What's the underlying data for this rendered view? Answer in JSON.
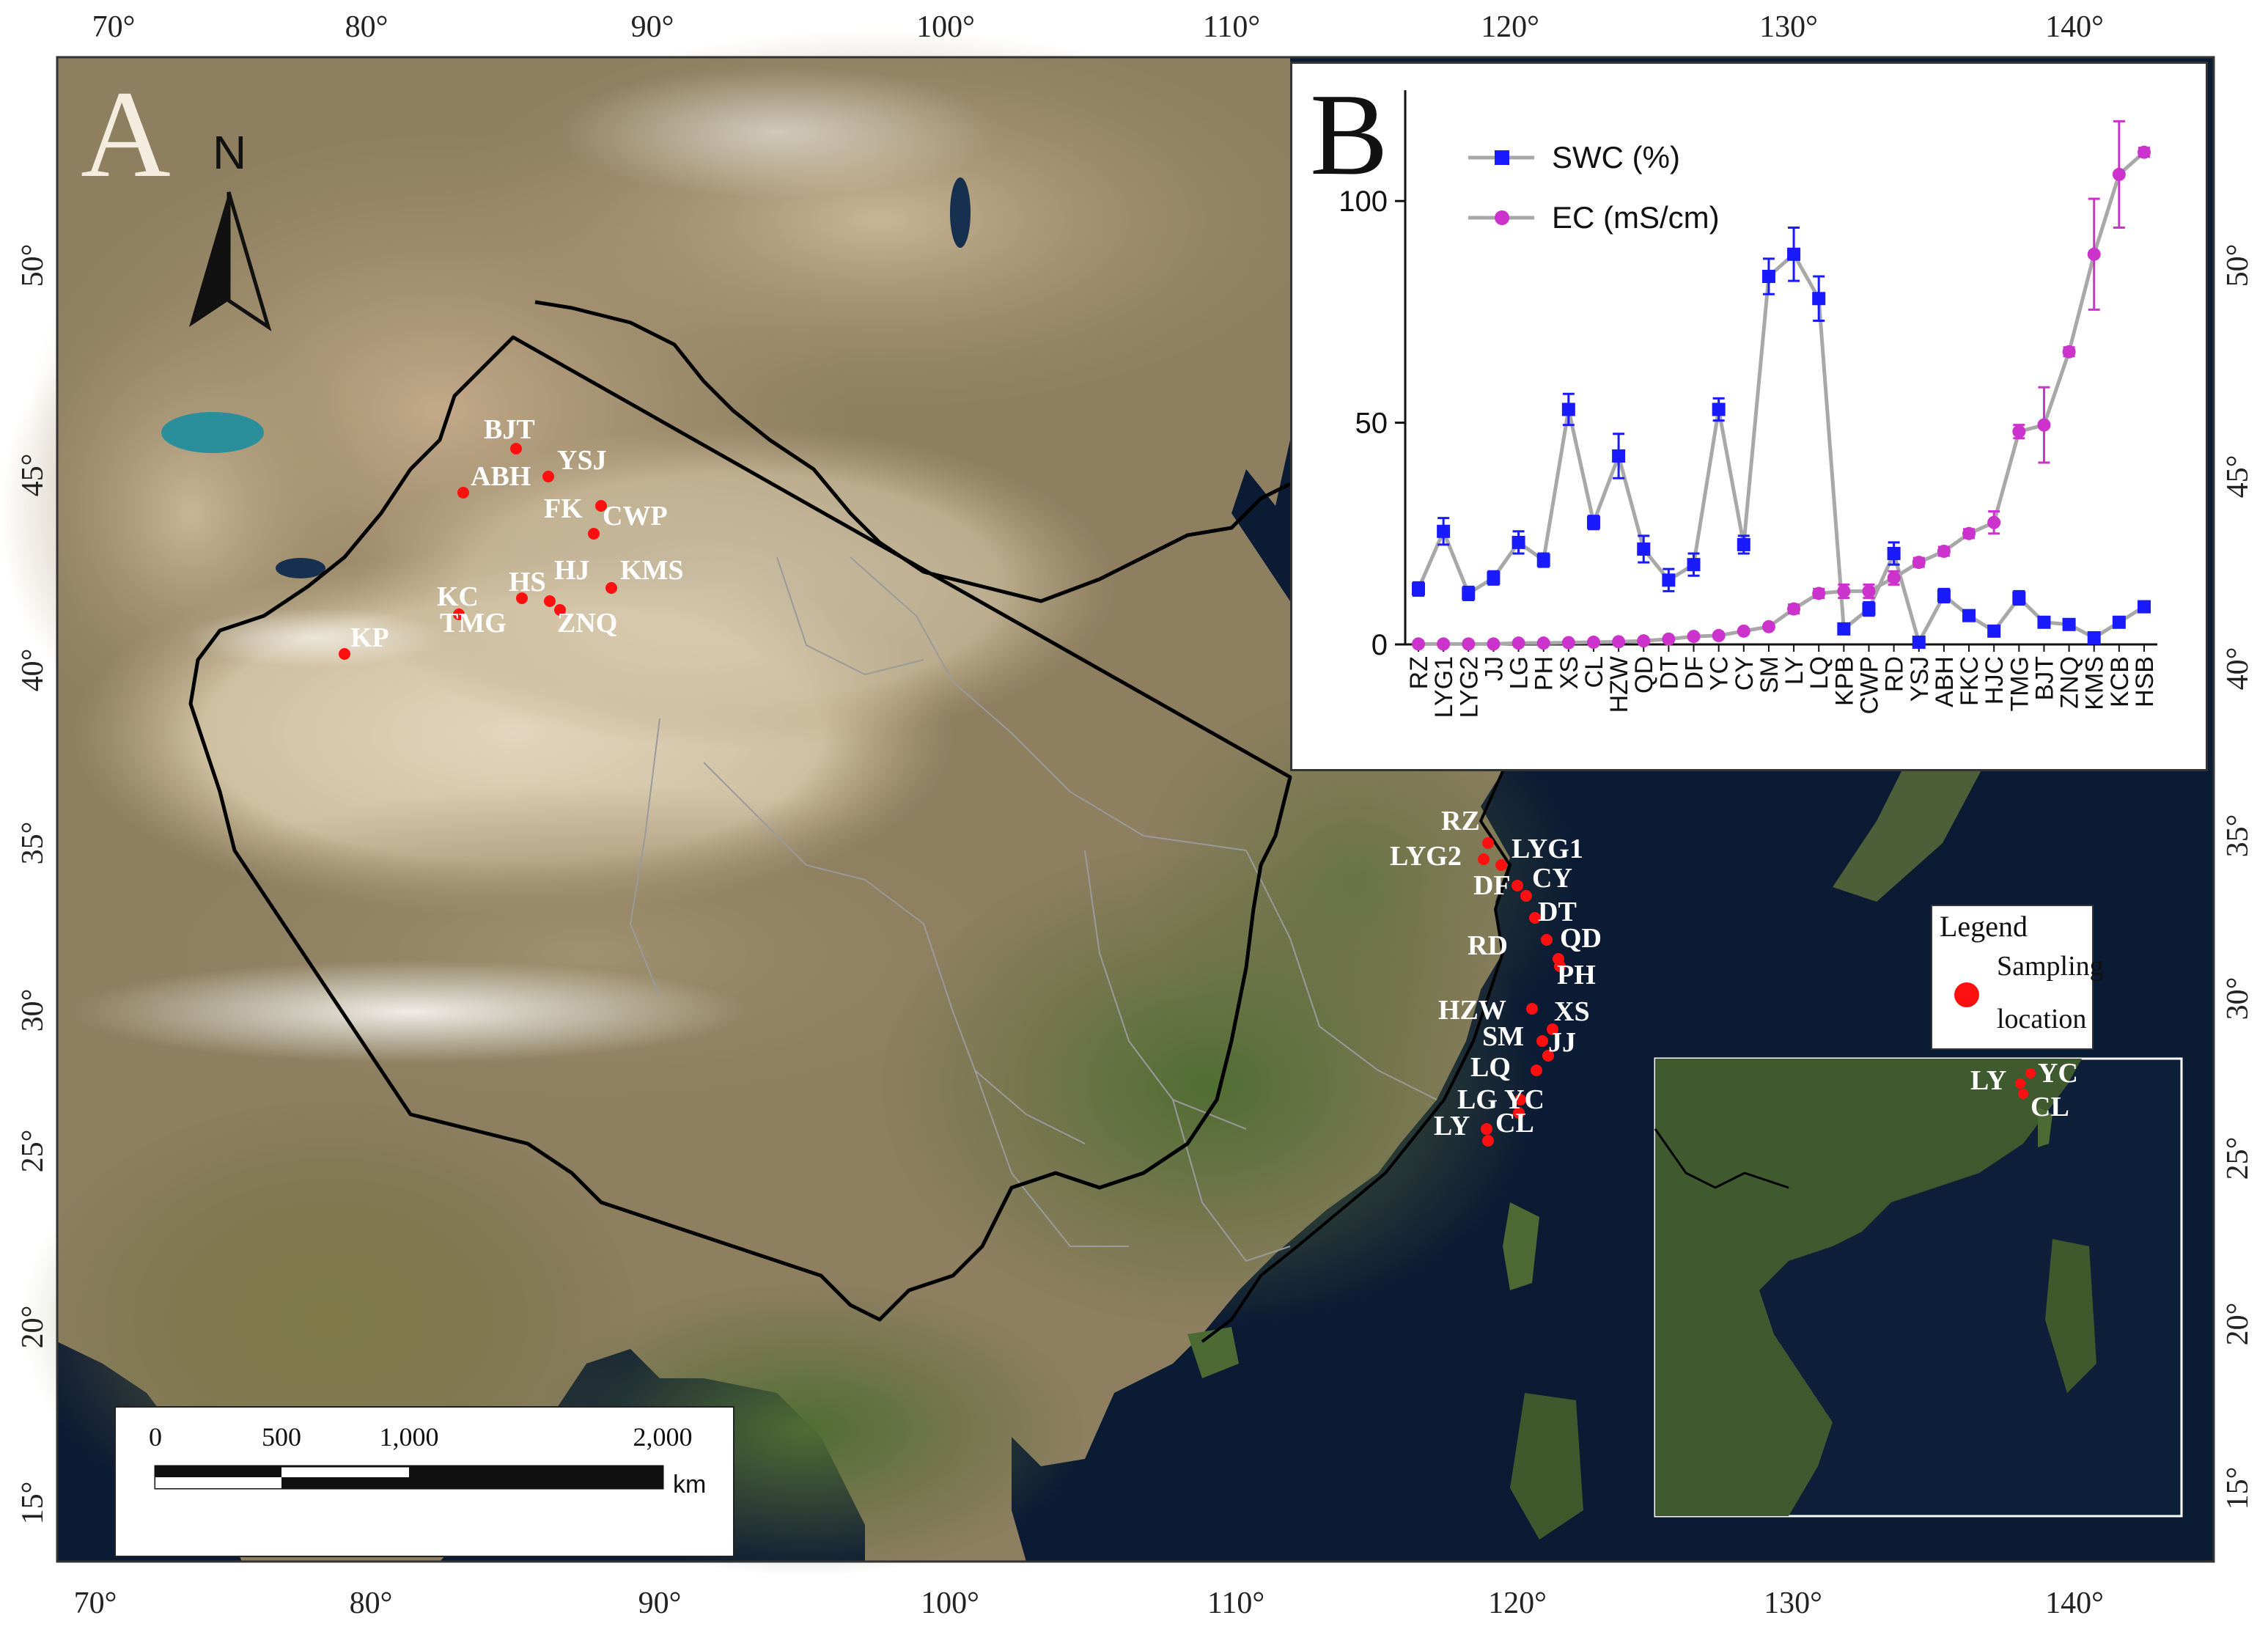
{
  "panel_a": {
    "letter": "A",
    "north_label": "N",
    "lon_ticks": [
      "70°",
      "80°",
      "90°",
      "100°",
      "110°",
      "120°",
      "130°",
      "140°"
    ],
    "lat_ticks": [
      "15°",
      "20°",
      "25°",
      "30°",
      "35°",
      "40°",
      "45°",
      "50°"
    ],
    "sites_west": [
      "BJT",
      "YSJ",
      "ABH",
      "FK",
      "CWP",
      "HS",
      "HJ",
      "KMS",
      "KC",
      "TMG",
      "ZNQ",
      "KP"
    ],
    "sites_east": [
      "RZ",
      "LYG2",
      "LYG1",
      "DF",
      "CY",
      "DT",
      "RD",
      "QD",
      "PH",
      "HZW",
      "XS",
      "SM",
      "JJ",
      "LQ",
      "LG",
      "YC",
      "LY",
      "CL"
    ],
    "inset_sites": [
      "LY",
      "YC",
      "CL"
    ],
    "legend": {
      "title": "Legend",
      "item_line1": "Sampling",
      "item_line2": "location",
      "marker_color": "#ff1010"
    },
    "scale_bar": {
      "labels": [
        "0",
        "500",
        "1,000",
        "2,000"
      ],
      "unit": "km"
    }
  },
  "chart_data": {
    "type": "line",
    "panel_letter": "B",
    "categories": [
      "RZ",
      "LYG1",
      "LYG2",
      "JJ",
      "LG",
      "PH",
      "XS",
      "CL",
      "HZW",
      "QD",
      "DT",
      "DF",
      "YC",
      "CY",
      "SM",
      "LY",
      "LQ",
      "KPB",
      "CWP",
      "RD",
      "YSJ",
      "ABH",
      "FKC",
      "HJC",
      "TMG",
      "BJT",
      "ZNQ",
      "KMS",
      "KCB",
      "HSB"
    ],
    "series": [
      {
        "name": "SWC (%)",
        "color": "#1a1aff",
        "marker": "square",
        "values": [
          12.5,
          25.5,
          11.5,
          15,
          23,
          19,
          53,
          27.5,
          42.5,
          21.5,
          14.5,
          18,
          53,
          22.5,
          83,
          88,
          78,
          3.5,
          8,
          20.5,
          0.5,
          11,
          6.5,
          3,
          10.5,
          5,
          4.5,
          1.5,
          5,
          8.5
        ],
        "errors": [
          1.5,
          3,
          1.5,
          1.5,
          2.5,
          1.5,
          3.5,
          1.5,
          5,
          3,
          2.5,
          2.5,
          2.5,
          2,
          4,
          6,
          5,
          1,
          1.5,
          2.5,
          1,
          1.5,
          1,
          1,
          1.5,
          1,
          1,
          1,
          1,
          1
        ]
      },
      {
        "name": "EC (mS/cm)",
        "color": "#cc33cc",
        "marker": "circle",
        "values": [
          0.1,
          0.1,
          0.1,
          0.1,
          0.3,
          0.3,
          0.4,
          0.5,
          0.6,
          0.8,
          1.2,
          1.8,
          2,
          3,
          4,
          8,
          11.5,
          12,
          12,
          15,
          18.5,
          21,
          25,
          27.5,
          48,
          49.5,
          66,
          88,
          106,
          111
        ],
        "errors": [
          0,
          0,
          0,
          0,
          0,
          0,
          0,
          0,
          0,
          0,
          0,
          0,
          0,
          0,
          0,
          1,
          1,
          1.5,
          1.5,
          1.5,
          1,
          1,
          1,
          2.5,
          1.5,
          8.5,
          1,
          12.5,
          12,
          1
        ]
      }
    ],
    "ylim": [
      0,
      125
    ],
    "yticks": [
      "0",
      "50",
      "100"
    ],
    "line_color": "#a8a8a8"
  }
}
